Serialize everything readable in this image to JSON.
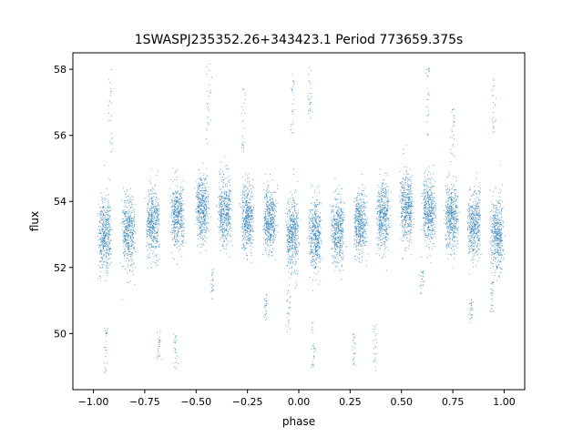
{
  "chart_data": {
    "type": "scatter",
    "title": "1SWASPJ235352.26+343423.1 Period 773659.375s",
    "xlabel": "phase",
    "ylabel": "flux",
    "xlim": [
      -1.1,
      1.1
    ],
    "ylim": [
      48.3,
      58.5
    ],
    "x_ticks": [
      {
        "value": -1.0,
        "label": "−1.00"
      },
      {
        "value": -0.75,
        "label": "−0.75"
      },
      {
        "value": -0.5,
        "label": "−0.50"
      },
      {
        "value": -0.25,
        "label": "−0.25"
      },
      {
        "value": 0.0,
        "label": "0.00"
      },
      {
        "value": 0.25,
        "label": "0.25"
      },
      {
        "value": 0.5,
        "label": "0.50"
      },
      {
        "value": 0.75,
        "label": "0.75"
      },
      {
        "value": 1.0,
        "label": "1.00"
      }
    ],
    "y_ticks": [
      {
        "value": 50,
        "label": "50"
      },
      {
        "value": 52,
        "label": "52"
      },
      {
        "value": 54,
        "label": "54"
      },
      {
        "value": 56,
        "label": "56"
      },
      {
        "value": 58,
        "label": "58"
      }
    ],
    "grid": false,
    "marker_color": "#1f77b4",
    "clusters": [
      {
        "x": -0.945,
        "width": 0.05,
        "mean": 53.0,
        "spread": 0.55
      },
      {
        "x": -0.83,
        "width": 0.05,
        "mean": 53.1,
        "spread": 0.55
      },
      {
        "x": -0.71,
        "width": 0.05,
        "mean": 53.3,
        "spread": 0.5
      },
      {
        "x": -0.59,
        "width": 0.05,
        "mean": 53.6,
        "spread": 0.5
      },
      {
        "x": -0.47,
        "width": 0.05,
        "mean": 53.8,
        "spread": 0.5
      },
      {
        "x": -0.36,
        "width": 0.05,
        "mean": 53.7,
        "spread": 0.5
      },
      {
        "x": -0.25,
        "width": 0.05,
        "mean": 53.5,
        "spread": 0.5
      },
      {
        "x": -0.14,
        "width": 0.05,
        "mean": 53.4,
        "spread": 0.5
      },
      {
        "x": -0.03,
        "width": 0.05,
        "mean": 53.0,
        "spread": 0.55
      },
      {
        "x": 0.08,
        "width": 0.05,
        "mean": 53.0,
        "spread": 0.55
      },
      {
        "x": 0.19,
        "width": 0.05,
        "mean": 53.1,
        "spread": 0.5
      },
      {
        "x": 0.3,
        "width": 0.05,
        "mean": 53.3,
        "spread": 0.5
      },
      {
        "x": 0.41,
        "width": 0.05,
        "mean": 53.6,
        "spread": 0.5
      },
      {
        "x": 0.525,
        "width": 0.05,
        "mean": 53.8,
        "spread": 0.5
      },
      {
        "x": 0.635,
        "width": 0.05,
        "mean": 53.7,
        "spread": 0.5
      },
      {
        "x": 0.745,
        "width": 0.05,
        "mean": 53.5,
        "spread": 0.5
      },
      {
        "x": 0.855,
        "width": 0.05,
        "mean": 53.3,
        "spread": 0.5
      },
      {
        "x": 0.965,
        "width": 0.05,
        "mean": 53.0,
        "spread": 0.55
      }
    ],
    "outlier_columns": [
      {
        "x": -0.915,
        "from": 55.5,
        "to": 58.0
      },
      {
        "x": -0.94,
        "from": 48.8,
        "to": 50.2
      },
      {
        "x": -0.68,
        "from": 49.1,
        "to": 50.1
      },
      {
        "x": -0.6,
        "from": 48.9,
        "to": 50.0
      },
      {
        "x": -0.44,
        "from": 55.6,
        "to": 58.2
      },
      {
        "x": -0.42,
        "from": 51.0,
        "to": 52.0
      },
      {
        "x": -0.27,
        "from": 55.5,
        "to": 57.5
      },
      {
        "x": -0.16,
        "from": 50.3,
        "to": 51.2
      },
      {
        "x": -0.05,
        "from": 50.0,
        "to": 51.3
      },
      {
        "x": -0.03,
        "from": 56.0,
        "to": 57.9
      },
      {
        "x": 0.055,
        "from": 56.5,
        "to": 58.1
      },
      {
        "x": 0.07,
        "from": 48.9,
        "to": 50.5
      },
      {
        "x": 0.27,
        "from": 49.0,
        "to": 50.0
      },
      {
        "x": 0.37,
        "from": 48.8,
        "to": 50.3
      },
      {
        "x": 0.6,
        "from": 51.2,
        "to": 52.0
      },
      {
        "x": 0.63,
        "from": 56.0,
        "to": 58.1
      },
      {
        "x": 0.75,
        "from": 55.2,
        "to": 56.8
      },
      {
        "x": 0.84,
        "from": 50.3,
        "to": 51.1
      },
      {
        "x": 0.94,
        "from": 50.6,
        "to": 51.6
      },
      {
        "x": 0.95,
        "from": 56.0,
        "to": 57.8
      }
    ]
  }
}
